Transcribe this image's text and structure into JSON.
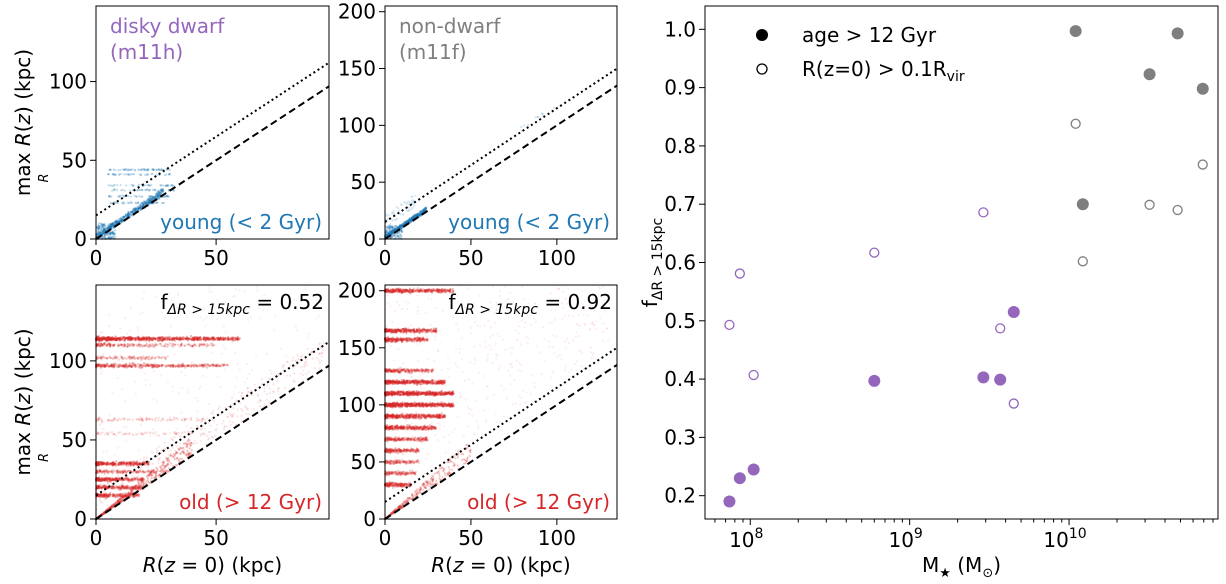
{
  "chart_data": [
    {
      "type": "scatter",
      "panel": "top-left",
      "annotations": {
        "label": "disky dwarf",
        "sublabel": "(m11h)",
        "population": "young (< 2 Gyr)"
      },
      "colors": {
        "label": "#9467bd",
        "points": "#1f77b4"
      },
      "xlim": [
        0,
        97
      ],
      "ylim": [
        0,
        148
      ],
      "x_ticks": [
        0,
        50
      ],
      "y_ticks": [
        0,
        50,
        100
      ],
      "xlabel": "",
      "ylabel_main": "max R(z) (kpc)",
      "ylabel_sub": "R",
      "reference_lines": [
        {
          "style": "dotted",
          "slope": 1,
          "intercept": 15
        },
        {
          "style": "dashed",
          "slope": 1,
          "intercept": 0
        }
      ]
    },
    {
      "type": "scatter",
      "panel": "top-right",
      "annotations": {
        "label": "non-dwarf",
        "sublabel": "(m11f)",
        "population": "young (< 2 Gyr)"
      },
      "colors": {
        "label": "#7f7f7f",
        "points": "#1f77b4"
      },
      "xlim": [
        0,
        135
      ],
      "ylim": [
        0,
        205
      ],
      "x_ticks": [
        0,
        50,
        100
      ],
      "y_ticks": [
        0,
        50,
        100,
        150,
        200
      ],
      "reference_lines": [
        {
          "style": "dotted",
          "slope": 1,
          "intercept": 15
        },
        {
          "style": "dashed",
          "slope": 1,
          "intercept": 0
        }
      ]
    },
    {
      "type": "scatter",
      "panel": "bottom-left",
      "annotations": {
        "fraction_label": "f",
        "fraction_sub": "ΔR > 15kpc",
        "fraction_value": "= 0.52",
        "population": "old (> 12 Gyr)"
      },
      "colors": {
        "points": "#d62728"
      },
      "xlim": [
        0,
        97
      ],
      "ylim": [
        0,
        148
      ],
      "x_ticks": [
        0,
        50
      ],
      "y_ticks": [
        0,
        50,
        100
      ],
      "xlabel_main": "R(z = 0) (kpc)",
      "ylabel_main": "max R(z) (kpc)",
      "ylabel_sub": "R",
      "reference_lines": [
        {
          "style": "dotted",
          "slope": 1,
          "intercept": 15
        },
        {
          "style": "dashed",
          "slope": 1,
          "intercept": 0
        }
      ]
    },
    {
      "type": "scatter",
      "panel": "bottom-right",
      "annotations": {
        "fraction_label": "f",
        "fraction_sub": "ΔR > 15kpc",
        "fraction_value": "= 0.92",
        "population": "old (> 12 Gyr)"
      },
      "colors": {
        "points": "#d62728"
      },
      "xlim": [
        0,
        135
      ],
      "ylim": [
        0,
        205
      ],
      "x_ticks": [
        0,
        50,
        100
      ],
      "y_ticks": [
        0,
        50,
        100,
        150,
        200
      ],
      "xlabel_main": "R(z = 0) (kpc)",
      "reference_lines": [
        {
          "style": "dotted",
          "slope": 1,
          "intercept": 15
        },
        {
          "style": "dashed",
          "slope": 1,
          "intercept": 0
        }
      ]
    },
    {
      "type": "scatter",
      "panel": "right",
      "x_scale": "log",
      "xlim": [
        52000000.0,
        86000000000.0
      ],
      "ylim": [
        0.16,
        1.04
      ],
      "x_ticks": [
        {
          "base": "10",
          "exp": "8",
          "value": 100000000.0
        },
        {
          "base": "10",
          "exp": "9",
          "value": 1000000000.0
        },
        {
          "base": "10",
          "exp": "10",
          "value": 10000000000.0
        }
      ],
      "y_ticks": [
        "0.2",
        "0.3",
        "0.4",
        "0.5",
        "0.6",
        "0.7",
        "0.8",
        "0.9",
        "1.0"
      ],
      "xlabel": {
        "main": "M",
        "star": "★",
        "unit": " (M",
        "sun": "⊙",
        "close": ")"
      },
      "ylabel": {
        "main": "f",
        "sub": "ΔR > 15kpc"
      },
      "legend": {
        "placement": "top-left",
        "entries": [
          {
            "marker": "filled",
            "text": "age > 12 Gyr"
          },
          {
            "marker": "open",
            "text": "R(z=0) > 0.1R",
            "sub": "vir"
          }
        ]
      },
      "colors": {
        "dwarf": "#9467bd",
        "massive": "#7f7f7f"
      },
      "series": [
        {
          "group": "dwarf",
          "marker": "filled",
          "points": [
            [
              74000000.0,
              0.19
            ],
            [
              86000000.0,
              0.23
            ],
            [
              105000000.0,
              0.245
            ],
            [
              600000000.0,
              0.397
            ],
            [
              2900000000.0,
              0.403
            ],
            [
              3700000000.0,
              0.399
            ],
            [
              4500000000.0,
              0.515
            ]
          ]
        },
        {
          "group": "dwarf",
          "marker": "open",
          "points": [
            [
              74000000.0,
              0.493
            ],
            [
              86000000.0,
              0.581
            ],
            [
              105000000.0,
              0.407
            ],
            [
              600000000.0,
              0.617
            ],
            [
              2900000000.0,
              0.686
            ],
            [
              3700000000.0,
              0.487
            ],
            [
              4500000000.0,
              0.358
            ]
          ]
        },
        {
          "group": "massive",
          "marker": "filled",
          "points": [
            [
              11000000000.0,
              0.997
            ],
            [
              12200000000.0,
              0.7
            ],
            [
              32000000000.0,
              0.923
            ],
            [
              48000000000.0,
              0.993
            ],
            [
              69000000000.0,
              0.898
            ]
          ]
        },
        {
          "group": "massive",
          "marker": "open",
          "points": [
            [
              11000000000.0,
              0.838
            ],
            [
              12200000000.0,
              0.602
            ],
            [
              32000000000.0,
              0.699
            ],
            [
              48000000000.0,
              0.69
            ],
            [
              69000000000.0,
              0.768
            ]
          ]
        }
      ]
    }
  ]
}
